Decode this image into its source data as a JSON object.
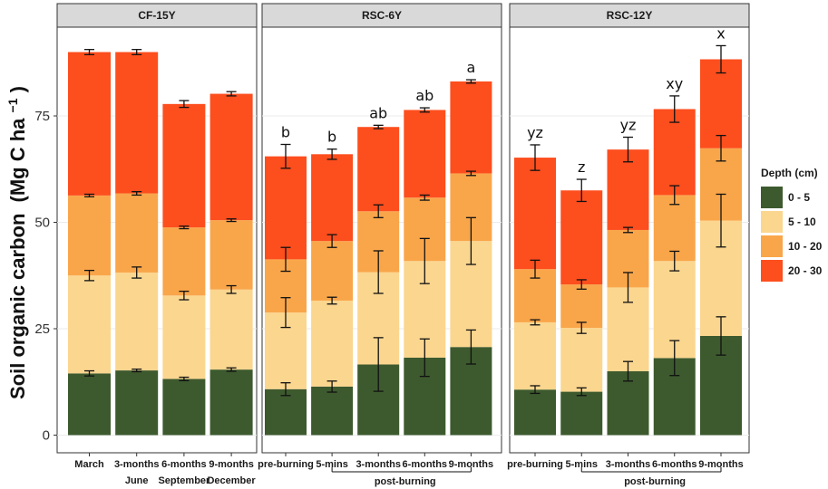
{
  "chart_data": {
    "type": "bar",
    "stacked": true,
    "ylabel": "Soil organic carbon",
    "ylabel_unit": "(Mg C ha",
    "ylabel_unit_sup": "−1",
    "ylabel_unit_close": ")",
    "ylim": [
      0,
      96
    ],
    "yticks": [
      0,
      25,
      50,
      75
    ],
    "yticks_labels": [
      "0",
      "25",
      "50",
      "75"
    ],
    "grid": true,
    "legend": {
      "title": "Depth (cm)",
      "position": "right",
      "entries": [
        {
          "label": "0 - 5",
          "color": "#3d5a2e"
        },
        {
          "label": "5 - 10",
          "color": "#fbd68f"
        },
        {
          "label": "10 - 20",
          "color": "#f9a64a"
        },
        {
          "label": "20 - 30",
          "color": "#fd4e1e"
        }
      ]
    },
    "panels": [
      {
        "title": "CF-15Y",
        "categories": [
          "March",
          "June",
          "September",
          "December"
        ],
        "tick_lines": [
          [
            "March"
          ],
          [
            "3-months",
            "June"
          ],
          [
            "6-months",
            "September"
          ],
          [
            "9-months",
            "December"
          ]
        ],
        "group_label": "",
        "group_range": [],
        "cumulative": [
          {
            "tops": [
              14.5,
              37.5,
              56.3,
              90.0
            ],
            "err": [
              0.6,
              1.2,
              0.3,
              0.6
            ],
            "sig": ""
          },
          {
            "tops": [
              15.2,
              38.2,
              56.8,
              90.0
            ],
            "err": [
              0.3,
              1.3,
              0.4,
              0.6
            ],
            "sig": ""
          },
          {
            "tops": [
              13.2,
              32.8,
              48.8,
              77.8
            ],
            "err": [
              0.4,
              1.0,
              0.3,
              0.8
            ],
            "sig": ""
          },
          {
            "tops": [
              15.4,
              34.2,
              50.5,
              80.2
            ],
            "err": [
              0.4,
              0.9,
              0.3,
              0.5
            ],
            "sig": ""
          }
        ]
      },
      {
        "title": "RSC-6Y",
        "categories": [
          "pre-burning",
          "5-mins",
          "3-months",
          "6-months",
          "9-months"
        ],
        "tick_lines": [
          [
            "pre-burning"
          ],
          [
            "5-mins"
          ],
          [
            "3-months"
          ],
          [
            "6-months"
          ],
          [
            "9-months"
          ]
        ],
        "group_label": "post-burning",
        "group_range": [
          1,
          4
        ],
        "cumulative": [
          {
            "tops": [
              10.8,
              28.8,
              41.3,
              65.5
            ],
            "err": [
              1.5,
              3.5,
              2.8,
              2.8
            ],
            "sig": "b"
          },
          {
            "tops": [
              11.4,
              31.6,
              45.6,
              66.0
            ],
            "err": [
              1.3,
              0.8,
              1.5,
              1.2
            ],
            "sig": "b"
          },
          {
            "tops": [
              16.6,
              38.3,
              52.6,
              72.4
            ],
            "err": [
              6.3,
              5.0,
              1.5,
              0.4
            ],
            "sig": "ab"
          },
          {
            "tops": [
              18.2,
              40.9,
              55.8,
              76.4
            ],
            "err": [
              4.4,
              5.3,
              0.6,
              0.5
            ],
            "sig": "ab"
          },
          {
            "tops": [
              20.7,
              45.6,
              61.5,
              83.1
            ],
            "err": [
              4.0,
              5.5,
              0.5,
              0.4
            ],
            "sig": "a"
          }
        ]
      },
      {
        "title": "RSC-12Y",
        "categories": [
          "pre-burning",
          "5-mins",
          "3-months",
          "6-months",
          "9-months"
        ],
        "tick_lines": [
          [
            "pre-burning"
          ],
          [
            "5-mins"
          ],
          [
            "3-months"
          ],
          [
            "6-months"
          ],
          [
            "9-months"
          ]
        ],
        "group_label": "post-burning",
        "group_range": [
          1,
          4
        ],
        "cumulative": [
          {
            "tops": [
              10.7,
              26.5,
              39.0,
              65.2
            ],
            "err": [
              0.9,
              0.6,
              2.1,
              3.0
            ],
            "sig": "yz"
          },
          {
            "tops": [
              10.2,
              25.2,
              35.4,
              57.5
            ],
            "err": [
              0.9,
              1.3,
              1.1,
              2.6
            ],
            "sig": "z"
          },
          {
            "tops": [
              15.0,
              34.7,
              48.2,
              67.1
            ],
            "err": [
              2.3,
              3.5,
              0.6,
              2.9
            ],
            "sig": "yz"
          },
          {
            "tops": [
              18.1,
              40.9,
              56.4,
              76.6
            ],
            "err": [
              4.1,
              2.3,
              2.2,
              3.1
            ],
            "sig": "xy"
          },
          {
            "tops": [
              23.3,
              50.4,
              67.4,
              88.3
            ],
            "err": [
              4.5,
              6.2,
              3.0,
              3.2
            ],
            "sig": "x"
          }
        ]
      }
    ]
  }
}
